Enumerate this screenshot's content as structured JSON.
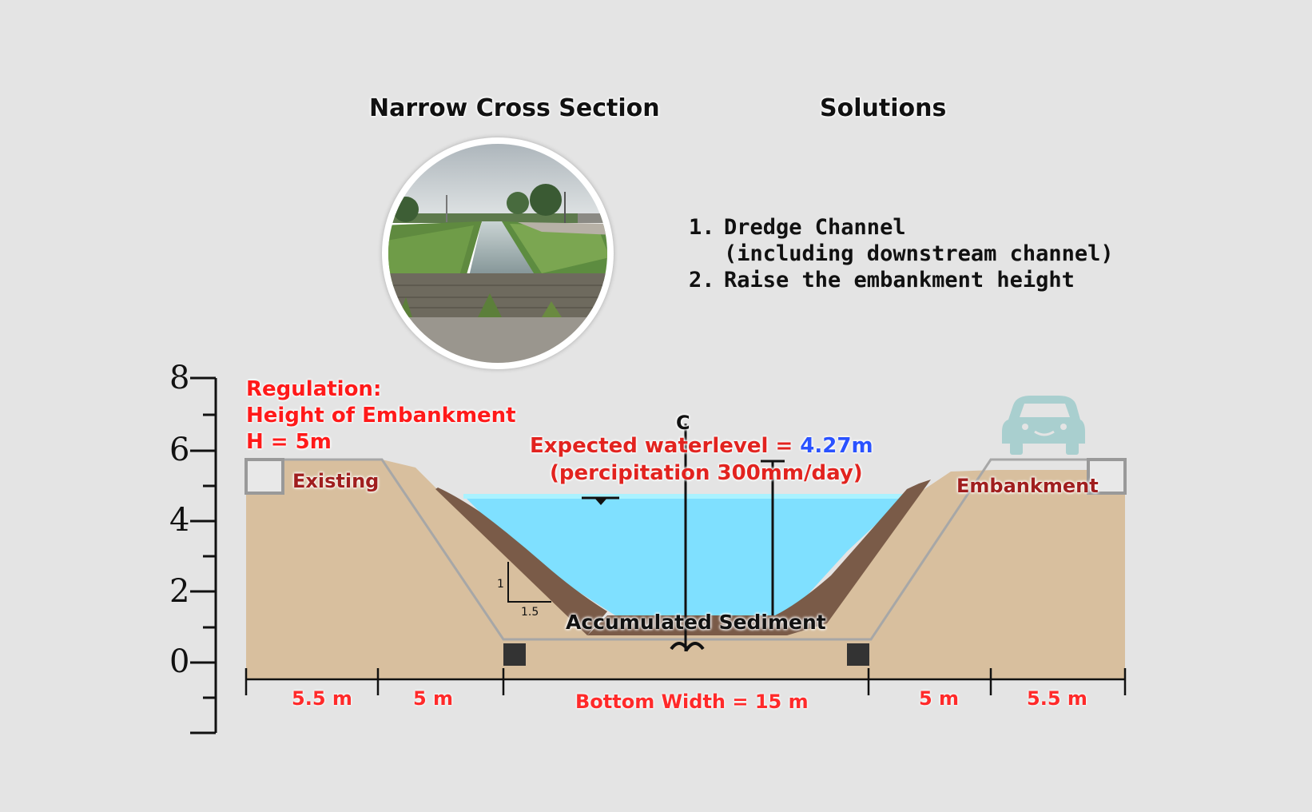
{
  "titles": {
    "left": "Narrow Cross Section",
    "right": "Solutions"
  },
  "solutions": [
    {
      "num": "1.",
      "line1": "Dredge Channel",
      "line2": "(including downstream channel)"
    },
    {
      "num": "2.",
      "line1": "Raise the embankment height",
      "line2": ""
    }
  ],
  "regulation": {
    "line1": "Regulation:",
    "line2": "Height of Embankment",
    "line3": "H = 5m"
  },
  "labels": {
    "existing": "Existing",
    "embankment": "Embankment",
    "centerline": "C",
    "waterlevel_prefix": "Expected waterlevel = ",
    "waterlevel_value": "4.27m",
    "precip": "(percipitation 300mm/day)",
    "sediment": "Accumulated Sediment",
    "slope_v": "1",
    "slope_h": "1.5"
  },
  "axis": {
    "ticks": [
      "8",
      "6",
      "4",
      "2",
      "0"
    ]
  },
  "dimensions": {
    "d1": "5.5 m",
    "d2": "5 m",
    "d3": "Bottom Width = 15 m",
    "d4": "5 m",
    "d5": "5.5 m"
  },
  "colors": {
    "soil": "#d8bf9e",
    "water": "#7fe0ff",
    "sediment": "#7a5b48",
    "regulation": "#ff1a1a",
    "waterlevel_value": "#2a52ff",
    "car": "#a9cfcf"
  },
  "icons": {
    "car": "car-icon",
    "photo": "canal-photo"
  }
}
